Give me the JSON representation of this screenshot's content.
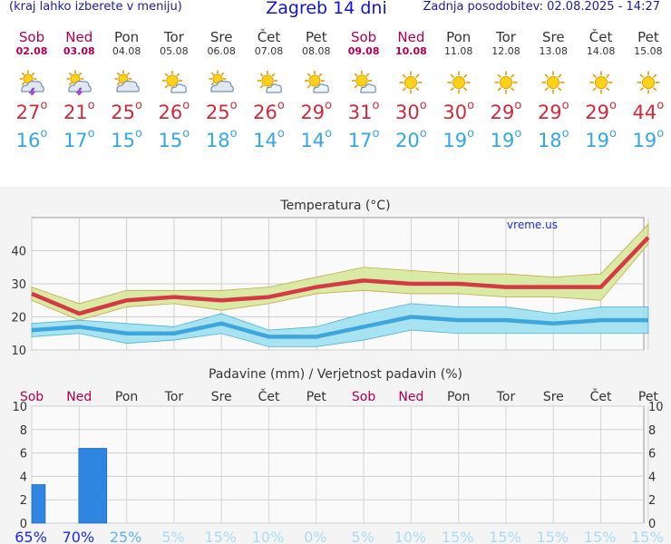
{
  "header": {
    "left_note": "(kraj lahko izberete v meniju)",
    "title": "Zagreb 14 dni",
    "updated": "Zadnja posodobitev: 02.08.2025 - 14:27"
  },
  "days": [
    {
      "name": "Sob",
      "date": "02.08",
      "weekend": true,
      "icon": "sun-cloud-thunder-icon",
      "max": "27",
      "min": "16",
      "precip_prob": "65%"
    },
    {
      "name": "Ned",
      "date": "03.08",
      "weekend": true,
      "icon": "sun-cloud-thunder-icon",
      "max": "21",
      "min": "17",
      "precip_prob": "70%"
    },
    {
      "name": "Pon",
      "date": "04.08",
      "weekend": false,
      "icon": "sun-cloud-icon",
      "max": "25",
      "min": "15",
      "precip_prob": "25%"
    },
    {
      "name": "Tor",
      "date": "05.08",
      "weekend": false,
      "icon": "sun-small-cloud-icon",
      "max": "26",
      "min": "15",
      "precip_prob": "5%"
    },
    {
      "name": "Sre",
      "date": "06.08",
      "weekend": false,
      "icon": "sun-cloud-icon",
      "max": "25",
      "min": "18",
      "precip_prob": "15%"
    },
    {
      "name": "Čet",
      "date": "07.08",
      "weekend": false,
      "icon": "sun-small-cloud-icon",
      "max": "26",
      "min": "14",
      "precip_prob": "10%"
    },
    {
      "name": "Pet",
      "date": "08.08",
      "weekend": false,
      "icon": "sun-small-cloud-icon",
      "max": "29",
      "min": "14",
      "precip_prob": "0%"
    },
    {
      "name": "Sob",
      "date": "09.08",
      "weekend": true,
      "icon": "sun-small-cloud-icon",
      "max": "31",
      "min": "17",
      "precip_prob": "5%"
    },
    {
      "name": "Ned",
      "date": "10.08",
      "weekend": true,
      "icon": "sun-icon",
      "max": "30",
      "min": "20",
      "precip_prob": "10%"
    },
    {
      "name": "Pon",
      "date": "11.08",
      "weekend": false,
      "icon": "sun-icon",
      "max": "30",
      "min": "19",
      "precip_prob": "15%"
    },
    {
      "name": "Tor",
      "date": "12.08",
      "weekend": false,
      "icon": "sun-icon",
      "max": "29",
      "min": "19",
      "precip_prob": "15%"
    },
    {
      "name": "Sre",
      "date": "13.08",
      "weekend": false,
      "icon": "sun-icon",
      "max": "29",
      "min": "18",
      "precip_prob": "15%"
    },
    {
      "name": "Čet",
      "date": "14.08",
      "weekend": false,
      "icon": "sun-icon",
      "max": "29",
      "min": "19",
      "precip_prob": "15%"
    },
    {
      "name": "Pet",
      "date": "15.08",
      "weekend": false,
      "icon": "sun-icon",
      "max": "44",
      "min": "19",
      "precip_prob": "15%"
    }
  ],
  "degree_mark": "o",
  "colors": {
    "max_line": "#d33a46",
    "min_line": "#3ea6dc",
    "max_band": "#d5e89a",
    "min_band": "#9ee0f0",
    "precip_bar": "#2e86e0",
    "weekend_text": "#b00050"
  },
  "chart_data": [
    {
      "type": "line",
      "title": "Temperatura (°C)",
      "watermark": "vreme.us",
      "ylim": [
        10,
        50
      ],
      "yticks": [
        10,
        20,
        30,
        40
      ],
      "grid": true,
      "series": [
        {
          "values": [
            27,
            21,
            25,
            26,
            25,
            26,
            29,
            31,
            30,
            30,
            29,
            29,
            29,
            44
          ],
          "band_low": [
            25,
            19,
            23,
            24,
            22,
            24,
            27,
            28,
            27,
            27,
            26,
            26,
            25,
            42
          ],
          "band_high": [
            29,
            24,
            28,
            28,
            28,
            29,
            32,
            35,
            34,
            33,
            33,
            32,
            33,
            48
          ]
        },
        {
          "values": [
            16,
            17,
            15,
            15,
            18,
            14,
            14,
            17,
            20,
            19,
            19,
            18,
            19,
            19
          ],
          "band_low": [
            14,
            15,
            12,
            13,
            15,
            11,
            11,
            13,
            16,
            15,
            15,
            15,
            15,
            15
          ],
          "band_high": [
            18,
            19,
            18,
            17,
            21,
            16,
            17,
            21,
            24,
            23,
            23,
            21,
            23,
            23
          ]
        }
      ]
    },
    {
      "type": "bar",
      "title": "Padavine (mm) / Verjetnost padavin (%)",
      "categories": [
        "Sob",
        "Ned",
        "Pon",
        "Tor",
        "Sre",
        "Čet",
        "Pet",
        "Sob",
        "Ned",
        "Pon",
        "Tor",
        "Sre",
        "Čet",
        "Pet"
      ],
      "values": [
        3.3,
        6.4,
        0,
        0,
        0,
        0,
        0,
        0,
        0,
        0,
        0,
        0,
        0,
        0
      ],
      "probability_pct": [
        65,
        70,
        25,
        5,
        15,
        10,
        0,
        5,
        10,
        15,
        15,
        15,
        15,
        15
      ],
      "ylim": [
        0,
        10
      ],
      "yticks": [
        0,
        2,
        4,
        6,
        8,
        10
      ],
      "grid": true
    }
  ]
}
